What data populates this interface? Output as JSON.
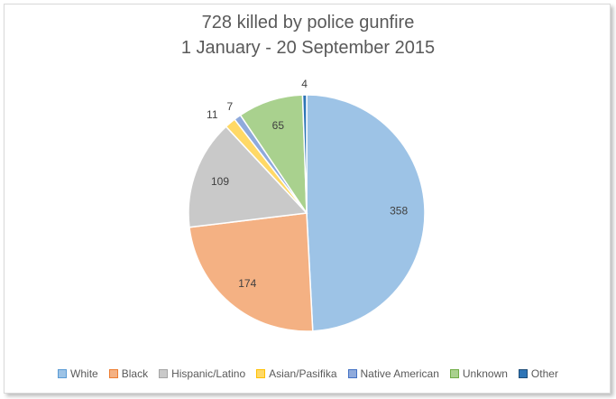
{
  "chart_data": {
    "type": "pie",
    "title": [
      "728 killed by police gunfire",
      "1 January - 20 September 2015"
    ],
    "slices": [
      {
        "name": "White",
        "value": 358,
        "color": "#9dc3e6",
        "stroke": "#5b9bd5"
      },
      {
        "name": "Black",
        "value": 174,
        "color": "#f4b183",
        "stroke": "#ed7d31"
      },
      {
        "name": "Hispanic/Latino",
        "value": 109,
        "color": "#c9c9c9",
        "stroke": "#a5a5a5"
      },
      {
        "name": "Asian/Pasifika",
        "value": 11,
        "color": "#ffd966",
        "stroke": "#ffc000"
      },
      {
        "name": "Native American",
        "value": 7,
        "color": "#8faadc",
        "stroke": "#4472c4"
      },
      {
        "name": "Unknown",
        "value": 65,
        "color": "#a9d18e",
        "stroke": "#70ad47"
      },
      {
        "name": "Other",
        "value": 4,
        "color": "#2e75b6",
        "stroke": "#1f4e79"
      }
    ],
    "legend_position": "bottom"
  }
}
